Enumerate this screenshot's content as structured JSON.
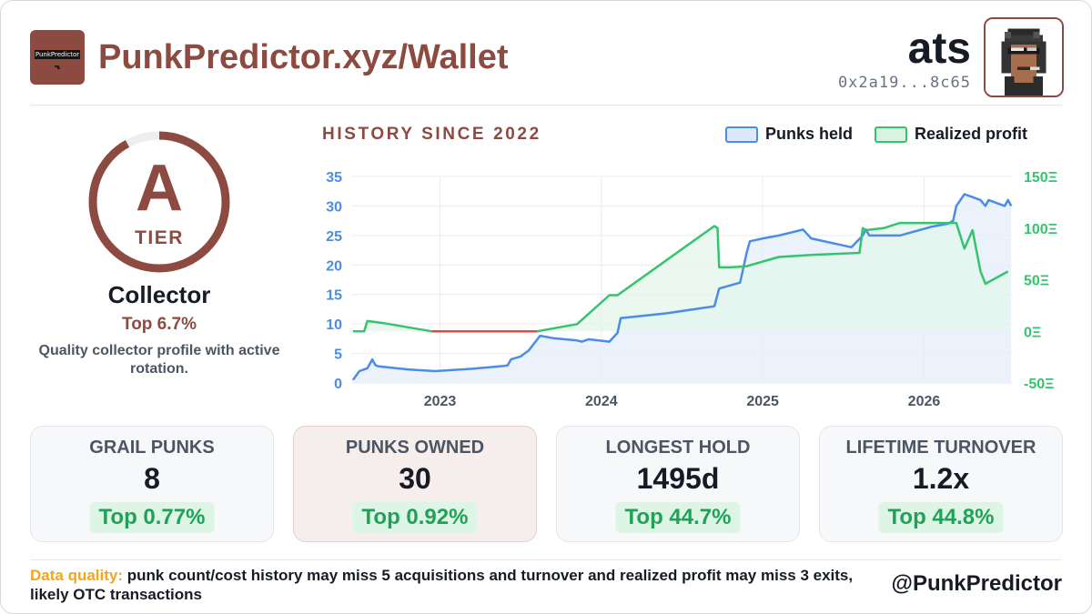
{
  "header": {
    "logo_text": "PunkPredictor",
    "title": "PunkPredictor.xyz/Wallet",
    "user_name": "ats",
    "wallet_address": "0x2a19...8c65"
  },
  "tier": {
    "letter": "A",
    "word": "TIER",
    "name": "Collector",
    "rank": "Top 6.7%",
    "description": "Quality collector profile with active rotation.",
    "ring_fraction": 0.92
  },
  "chart": {
    "title": "HISTORY SINCE 2022",
    "legend": [
      {
        "label": "Punks held",
        "color": "#4a8de8"
      },
      {
        "label": "Realized profit",
        "color": "#34c46e"
      }
    ]
  },
  "chart_data": {
    "type": "line",
    "title": "HISTORY SINCE 2022",
    "x_ticks": [
      "2023",
      "2024",
      "2025",
      "2026"
    ],
    "x_range": [
      2022.45,
      2026.55
    ],
    "y_left": {
      "ticks": [
        "0",
        "5",
        "10",
        "15",
        "20",
        "25",
        "30",
        "35"
      ],
      "range": [
        0,
        35
      ]
    },
    "y_right": {
      "ticks": [
        "150Ξ",
        "100Ξ",
        "50Ξ",
        "0Ξ",
        "-50Ξ"
      ],
      "range": [
        -50,
        150
      ]
    },
    "grid": true,
    "legend_position": "top-right",
    "series": [
      {
        "name": "Punks held",
        "axis": "left",
        "color": "#4a8de8",
        "x": [
          2022.46,
          2022.5,
          2022.55,
          2022.58,
          2022.6,
          2022.62,
          2022.8,
          2022.97,
          2023.2,
          2023.4,
          2023.42,
          2023.44,
          2023.5,
          2023.55,
          2023.62,
          2023.7,
          2023.85,
          2023.88,
          2023.92,
          2024.05,
          2024.1,
          2024.12,
          2024.4,
          2024.7,
          2024.72,
          2024.73,
          2024.86,
          2024.9,
          2024.92,
          2025.0,
          2025.1,
          2025.25,
          2025.3,
          2025.55,
          2025.62,
          2025.64,
          2025.66,
          2025.7,
          2025.85,
          2026.05,
          2026.15,
          2026.18,
          2026.2,
          2026.25,
          2026.3,
          2026.35,
          2026.38,
          2026.4,
          2026.5,
          2026.52,
          2026.54
        ],
        "y": [
          0.5,
          2,
          2.5,
          4,
          3,
          2.8,
          2.3,
          2,
          2.4,
          2.9,
          3.0,
          4.0,
          4.5,
          5.5,
          8,
          7.6,
          7.2,
          7.0,
          7.4,
          7.0,
          8.5,
          11,
          11.8,
          13,
          15,
          16,
          17,
          22,
          24,
          24.5,
          25,
          26,
          24.5,
          23,
          25,
          26,
          25,
          25,
          25,
          26.5,
          27,
          27.5,
          30,
          32,
          31.5,
          31,
          30,
          31,
          30,
          31,
          30
        ],
        "fill": "#e6eefb"
      },
      {
        "name": "Realized profit",
        "axis": "right",
        "color": "#34c46e",
        "x": [
          2022.46,
          2022.53,
          2022.55,
          2022.65,
          2022.95,
          2023.6,
          2023.85,
          2024.05,
          2024.1,
          2024.7,
          2024.72,
          2024.73,
          2024.8,
          2024.9,
          2025.1,
          2025.3,
          2025.6,
          2025.62,
          2025.64,
          2025.75,
          2025.85,
          2026.0,
          2026.2,
          2026.25,
          2026.3,
          2026.35,
          2026.38,
          2026.52
        ],
        "y": [
          0,
          0,
          10,
          8,
          0,
          0,
          7,
          35,
          35,
          102,
          100,
          62,
          62,
          63,
          72,
          74,
          76,
          100,
          98,
          100,
          105,
          105,
          105,
          80,
          98,
          58,
          46,
          58
        ],
        "flat_segment": {
          "x": [
            2022.95,
            2023.6
          ],
          "color": "#e8453c"
        },
        "fill": "#e3f6eb"
      }
    ]
  },
  "stats": [
    {
      "label": "GRAIL PUNKS",
      "value": "8",
      "badge": "Top 0.77%",
      "highlight": false
    },
    {
      "label": "PUNKS OWNED",
      "value": "30",
      "badge": "Top 0.92%",
      "highlight": true
    },
    {
      "label": "LONGEST HOLD",
      "value": "1495d",
      "badge": "Top 44.7%",
      "highlight": false
    },
    {
      "label": "LIFETIME TURNOVER",
      "value": "1.2x",
      "badge": "Top 44.8%",
      "highlight": false
    }
  ],
  "footer": {
    "quality_label": "Data quality:",
    "quality_text": "punk count/cost history may miss 5 acquisitions and turnover and realized profit may miss 3 exits, likely OTC transactions",
    "handle": "@PunkPredictor"
  },
  "colors": {
    "brand": "#8c4a41",
    "blue": "#4a8de8",
    "green": "#34c46e",
    "red": "#e8453c",
    "warn": "#f2a71b"
  }
}
